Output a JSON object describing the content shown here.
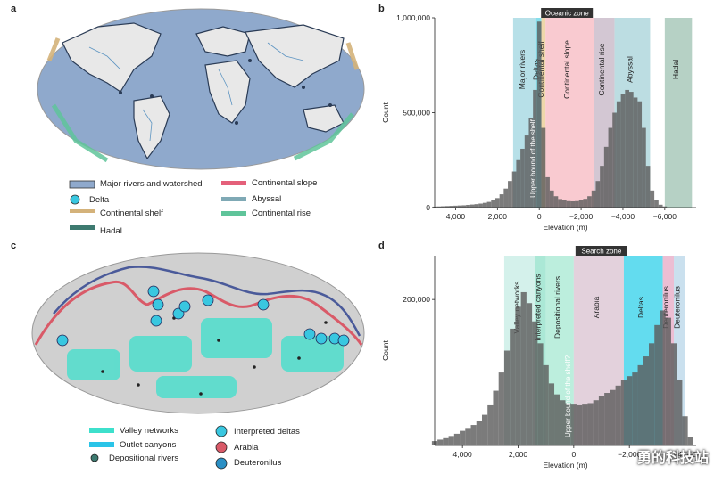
{
  "panels": {
    "a": {
      "letter": "a",
      "legend": {
        "rivers": "Major rivers and watershed",
        "delta": "Delta",
        "shelf": "Continental shelf",
        "hadal": "Hadal",
        "slope": "Continental slope",
        "abyssal": "Abyssal",
        "rise": "Continental rise"
      }
    },
    "b": {
      "letter": "b"
    },
    "c": {
      "letter": "c",
      "legend": {
        "valley": "Valley networks",
        "outlet": "Outlet canyons",
        "depositional": "Depositional rivers",
        "interpreted": "Interpreted deltas",
        "arabia": "Arabia",
        "deuteronilus": "Deuteronilus"
      }
    },
    "d": {
      "letter": "d"
    }
  },
  "colors": {
    "ocean": "#8fa9cc",
    "land": "#e8e8e8",
    "shelf": "#d4b27a",
    "rise": "#5fc49a",
    "slope": "#e4607a",
    "abyssal": "#7fa9b5",
    "hadal": "#3d7a70",
    "delta": "#39c7e0",
    "valley": "#3de0cc",
    "outlet": "#2ac4e8",
    "arabia": "#d95a68",
    "deuteronilus": "#2a8fc4"
  },
  "chart_data": [
    {
      "type": "bar",
      "panel": "b",
      "ylabel": "Count",
      "xlabel": "Elevation (m)",
      "xlim": [
        5000,
        -7500
      ],
      "ylim": [
        0,
        1000000
      ],
      "xticks": [
        "4,000",
        "2,000",
        "0",
        "−2,000",
        "−4,000",
        "−6,000"
      ],
      "yticks": [
        "0",
        "500,000",
        "1,000,000"
      ],
      "bands": [
        {
          "label": "Major rivers",
          "from": 1250,
          "to": 150,
          "color": "#9fd6e0"
        },
        {
          "label": "Deltas",
          "from": 150,
          "to": -100,
          "color": "#5ed4e6"
        },
        {
          "label": "Continental shelf",
          "from": -100,
          "to": -300,
          "color": "#e8c98e"
        },
        {
          "label": "Continental slope",
          "from": -300,
          "to": -2600,
          "color": "#f7b8c0"
        },
        {
          "label": "Continental rise",
          "from": -2600,
          "to": -3600,
          "color": "#c4b4c4"
        },
        {
          "label": "Abyssal",
          "from": -3600,
          "to": -5300,
          "color": "#a6d1d8"
        },
        {
          "label": "Hadal",
          "from": -6000,
          "to": -7300,
          "color": "#9ec2b2"
        }
      ],
      "annotations": [
        "Upper bound of the shelf",
        "Oceanic zone"
      ],
      "bins": [
        {
          "x": 5000,
          "y": 5000
        },
        {
          "x": 4800,
          "y": 6000
        },
        {
          "x": 4600,
          "y": 7000
        },
        {
          "x": 4400,
          "y": 8000
        },
        {
          "x": 4200,
          "y": 9000
        },
        {
          "x": 4000,
          "y": 10000
        },
        {
          "x": 3800,
          "y": 11000
        },
        {
          "x": 3600,
          "y": 12000
        },
        {
          "x": 3400,
          "y": 14000
        },
        {
          "x": 3200,
          "y": 16000
        },
        {
          "x": 3000,
          "y": 18000
        },
        {
          "x": 2800,
          "y": 21000
        },
        {
          "x": 2600,
          "y": 25000
        },
        {
          "x": 2400,
          "y": 30000
        },
        {
          "x": 2200,
          "y": 38000
        },
        {
          "x": 2000,
          "y": 50000
        },
        {
          "x": 1800,
          "y": 70000
        },
        {
          "x": 1600,
          "y": 100000
        },
        {
          "x": 1400,
          "y": 140000
        },
        {
          "x": 1200,
          "y": 190000
        },
        {
          "x": 1000,
          "y": 250000
        },
        {
          "x": 800,
          "y": 310000
        },
        {
          "x": 600,
          "y": 380000
        },
        {
          "x": 400,
          "y": 470000
        },
        {
          "x": 200,
          "y": 620000
        },
        {
          "x": 0,
          "y": 980000
        },
        {
          "x": -200,
          "y": 420000
        },
        {
          "x": -400,
          "y": 160000
        },
        {
          "x": -600,
          "y": 90000
        },
        {
          "x": -800,
          "y": 60000
        },
        {
          "x": -1000,
          "y": 45000
        },
        {
          "x": -1200,
          "y": 38000
        },
        {
          "x": -1400,
          "y": 34000
        },
        {
          "x": -1600,
          "y": 33000
        },
        {
          "x": -1800,
          "y": 34000
        },
        {
          "x": -2000,
          "y": 38000
        },
        {
          "x": -2200,
          "y": 46000
        },
        {
          "x": -2400,
          "y": 60000
        },
        {
          "x": -2600,
          "y": 90000
        },
        {
          "x": -2800,
          "y": 140000
        },
        {
          "x": -3000,
          "y": 220000
        },
        {
          "x": -3200,
          "y": 320000
        },
        {
          "x": -3400,
          "y": 420000
        },
        {
          "x": -3600,
          "y": 500000
        },
        {
          "x": -3800,
          "y": 560000
        },
        {
          "x": -4000,
          "y": 600000
        },
        {
          "x": -4200,
          "y": 620000
        },
        {
          "x": -4400,
          "y": 610000
        },
        {
          "x": -4600,
          "y": 580000
        },
        {
          "x": -4800,
          "y": 560000
        },
        {
          "x": -5000,
          "y": 420000
        },
        {
          "x": -5200,
          "y": 220000
        },
        {
          "x": -5400,
          "y": 90000
        },
        {
          "x": -5600,
          "y": 40000
        },
        {
          "x": -5800,
          "y": 15000
        },
        {
          "x": -6000,
          "y": 6000
        }
      ]
    },
    {
      "type": "bar",
      "panel": "d",
      "ylabel": "Count",
      "xlabel": "Elevation (m)",
      "xlim": [
        5000,
        -4400
      ],
      "ylim": [
        0,
        260000
      ],
      "xticks": [
        "4,000",
        "2,000",
        "0",
        "−2,000",
        "−4,000"
      ],
      "yticks": [
        "200,000"
      ],
      "bands": [
        {
          "label": "Valley networks",
          "from": 2500,
          "to": 1400,
          "color": "#c6ece4"
        },
        {
          "label": "Interpreted canyons",
          "from": 1400,
          "to": 1000,
          "color": "#8fe0c8"
        },
        {
          "label": "Depositional rivers",
          "from": 1000,
          "to": 0,
          "color": "#a6e8d2"
        },
        {
          "label": "Arabia",
          "from": 0,
          "to": -1800,
          "color": "#d9c2d0"
        },
        {
          "label": "Deltas",
          "from": -1800,
          "to": -3200,
          "color": "#2fd0ea"
        },
        {
          "label": "Deuteronilus",
          "from": -3200,
          "to": -3600,
          "color": "#e6a8c4"
        },
        {
          "label": "Deuteronilus",
          "from": -3600,
          "to": -4000,
          "color": "#b8d6e8"
        }
      ],
      "annotations": [
        "Upper bound of the shelf?",
        "Search zone"
      ],
      "bins": [
        {
          "x": 5000,
          "y": 6000
        },
        {
          "x": 4800,
          "y": 8000
        },
        {
          "x": 4600,
          "y": 10000
        },
        {
          "x": 4400,
          "y": 13000
        },
        {
          "x": 4200,
          "y": 16000
        },
        {
          "x": 4000,
          "y": 20000
        },
        {
          "x": 3800,
          "y": 24000
        },
        {
          "x": 3600,
          "y": 28000
        },
        {
          "x": 3400,
          "y": 34000
        },
        {
          "x": 3200,
          "y": 42000
        },
        {
          "x": 3000,
          "y": 55000
        },
        {
          "x": 2800,
          "y": 75000
        },
        {
          "x": 2600,
          "y": 100000
        },
        {
          "x": 2400,
          "y": 130000
        },
        {
          "x": 2200,
          "y": 160000
        },
        {
          "x": 2000,
          "y": 190000
        },
        {
          "x": 1800,
          "y": 210000
        },
        {
          "x": 1600,
          "y": 195000
        },
        {
          "x": 1400,
          "y": 170000
        },
        {
          "x": 1200,
          "y": 140000
        },
        {
          "x": 1000,
          "y": 110000
        },
        {
          "x": 800,
          "y": 85000
        },
        {
          "x": 600,
          "y": 70000
        },
        {
          "x": 400,
          "y": 62000
        },
        {
          "x": 200,
          "y": 58000
        },
        {
          "x": 0,
          "y": 56000
        },
        {
          "x": -200,
          "y": 55000
        },
        {
          "x": -400,
          "y": 56000
        },
        {
          "x": -600,
          "y": 58000
        },
        {
          "x": -800,
          "y": 62000
        },
        {
          "x": -1000,
          "y": 68000
        },
        {
          "x": -1200,
          "y": 72000
        },
        {
          "x": -1400,
          "y": 76000
        },
        {
          "x": -1600,
          "y": 82000
        },
        {
          "x": -1800,
          "y": 90000
        },
        {
          "x": -2000,
          "y": 95000
        },
        {
          "x": -2200,
          "y": 100000
        },
        {
          "x": -2400,
          "y": 110000
        },
        {
          "x": -2600,
          "y": 122000
        },
        {
          "x": -2800,
          "y": 140000
        },
        {
          "x": -3000,
          "y": 165000
        },
        {
          "x": -3200,
          "y": 185000
        },
        {
          "x": -3400,
          "y": 175000
        },
        {
          "x": -3600,
          "y": 140000
        },
        {
          "x": -3800,
          "y": 90000
        },
        {
          "x": -4000,
          "y": 40000
        },
        {
          "x": -4200,
          "y": 12000
        }
      ]
    }
  ]
}
